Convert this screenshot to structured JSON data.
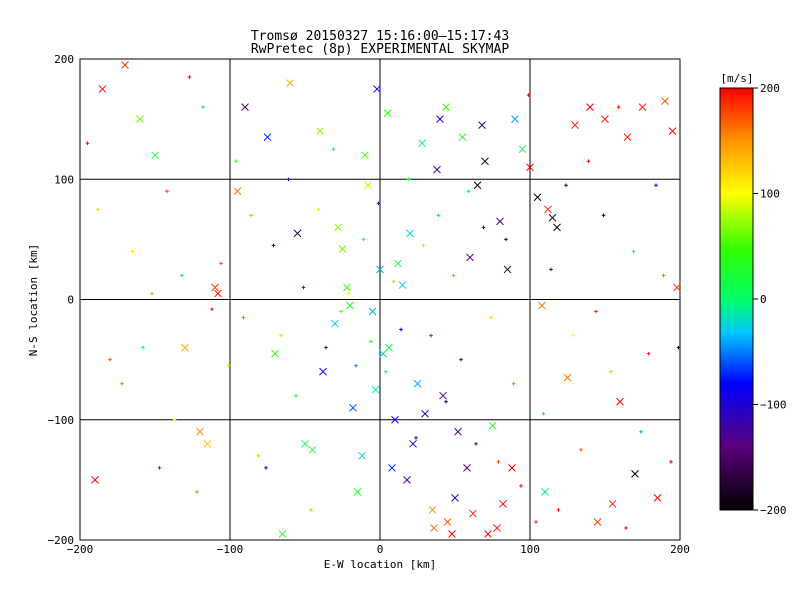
{
  "chart_data": {
    "type": "scatter",
    "title_lines": [
      "Tromsø 20150327 15:16:00–15:17:43",
      "RwPretec (8p) EXPERIMENTAL SKYMAP"
    ],
    "xlabel": "E-W location [km]",
    "ylabel": "N-S location [km]",
    "xlim": [
      -200,
      200
    ],
    "ylim": [
      -200,
      200
    ],
    "xticks": [
      -200,
      -100,
      0,
      100,
      200
    ],
    "yticks": [
      -200,
      -100,
      0,
      100,
      200
    ],
    "xtick_labels": [
      "−200",
      "−100",
      "0",
      "100",
      "200"
    ],
    "ytick_labels": [
      "−200",
      "−100",
      "0",
      "100",
      "200"
    ],
    "grid": true,
    "marker_styles": [
      "x (cross)",
      "+ (small plus)"
    ],
    "colorbar": {
      "label": "[m/s]",
      "range": [
        -200,
        200
      ],
      "ticks": [
        -200,
        -100,
        0,
        100,
        200
      ],
      "tick_labels": [
        "−200",
        "−100",
        "0",
        "100",
        "200"
      ],
      "colormap": "rainbow (black → purple → blue → cyan → green → yellow → orange → red)",
      "placement": "right"
    },
    "series": [
      {
        "marker": "x",
        "points": [
          [
            -190,
            -150,
            200
          ],
          [
            -185,
            175,
            200
          ],
          [
            -170,
            195,
            180
          ],
          [
            -160,
            150,
            60
          ],
          [
            -150,
            120,
            20
          ],
          [
            -130,
            -40,
            140
          ],
          [
            -120,
            -110,
            150
          ],
          [
            -115,
            -120,
            130
          ],
          [
            -110,
            10,
            180
          ],
          [
            -108,
            5,
            190
          ],
          [
            -95,
            90,
            160
          ],
          [
            -90,
            160,
            -150
          ],
          [
            -75,
            135,
            -70
          ],
          [
            -70,
            -45,
            40
          ],
          [
            -65,
            -195,
            30
          ],
          [
            -60,
            180,
            140
          ],
          [
            -55,
            55,
            -170
          ],
          [
            -50,
            -120,
            20
          ],
          [
            -45,
            -125,
            10
          ],
          [
            -40,
            140,
            70
          ],
          [
            -38,
            -60,
            -90
          ],
          [
            -30,
            -20,
            -30
          ],
          [
            -28,
            60,
            70
          ],
          [
            -25,
            42,
            60
          ],
          [
            -22,
            10,
            40
          ],
          [
            -20,
            -5,
            30
          ],
          [
            -18,
            -90,
            -60
          ],
          [
            -15,
            -160,
            30
          ],
          [
            -12,
            -130,
            -20
          ],
          [
            -10,
            120,
            50
          ],
          [
            -8,
            95,
            80
          ],
          [
            -5,
            -10,
            -40
          ],
          [
            -3,
            -75,
            -10
          ],
          [
            -2,
            175,
            -90
          ],
          [
            0,
            25,
            -40
          ],
          [
            2,
            -45,
            -20
          ],
          [
            5,
            155,
            40
          ],
          [
            6,
            -40,
            10
          ],
          [
            8,
            -140,
            -70
          ],
          [
            10,
            -100,
            -80
          ],
          [
            12,
            30,
            10
          ],
          [
            15,
            12,
            -30
          ],
          [
            18,
            -150,
            -120
          ],
          [
            20,
            55,
            -20
          ],
          [
            22,
            -120,
            -100
          ],
          [
            25,
            -70,
            -40
          ],
          [
            28,
            130,
            -10
          ],
          [
            30,
            -95,
            -110
          ],
          [
            35,
            -175,
            150
          ],
          [
            36,
            -190,
            160
          ],
          [
            38,
            108,
            -120
          ],
          [
            40,
            150,
            -100
          ],
          [
            42,
            -80,
            -130
          ],
          [
            44,
            160,
            50
          ],
          [
            45,
            -185,
            170
          ],
          [
            48,
            -195,
            200
          ],
          [
            50,
            -165,
            -110
          ],
          [
            52,
            -110,
            -120
          ],
          [
            55,
            135,
            40
          ],
          [
            58,
            -140,
            -140
          ],
          [
            60,
            35,
            -130
          ],
          [
            62,
            -178,
            190
          ],
          [
            65,
            95,
            -200
          ],
          [
            68,
            145,
            -160
          ],
          [
            70,
            115,
            -180
          ],
          [
            72,
            -195,
            200
          ],
          [
            75,
            -105,
            30
          ],
          [
            78,
            -190,
            190
          ],
          [
            80,
            65,
            -150
          ],
          [
            82,
            -170,
            200
          ],
          [
            85,
            25,
            -170
          ],
          [
            88,
            -140,
            200
          ],
          [
            90,
            150,
            -40
          ],
          [
            95,
            125,
            10
          ],
          [
            100,
            110,
            200
          ],
          [
            105,
            85,
            -200
          ],
          [
            108,
            -5,
            160
          ],
          [
            110,
            -160,
            -10
          ],
          [
            112,
            75,
            190
          ],
          [
            115,
            68,
            -180
          ],
          [
            118,
            60,
            -190
          ],
          [
            125,
            -65,
            160
          ],
          [
            130,
            145,
            190
          ],
          [
            140,
            160,
            200
          ],
          [
            145,
            -185,
            180
          ],
          [
            150,
            150,
            190
          ],
          [
            155,
            -170,
            190
          ],
          [
            160,
            -85,
            200
          ],
          [
            165,
            135,
            190
          ],
          [
            170,
            -145,
            -190
          ],
          [
            175,
            160,
            190
          ],
          [
            185,
            -165,
            200
          ],
          [
            190,
            165,
            170
          ],
          [
            195,
            140,
            200
          ],
          [
            198,
            10,
            180
          ]
        ]
      },
      {
        "marker": "+",
        "points": [
          [
            -195,
            130,
            200
          ],
          [
            -188,
            75,
            120
          ],
          [
            -180,
            -50,
            170
          ],
          [
            -172,
            -70,
            160
          ],
          [
            -165,
            40,
            110
          ],
          [
            -158,
            -40,
            20
          ],
          [
            -152,
            5,
            150
          ],
          [
            -147,
            -140,
            200
          ],
          [
            -142,
            90,
            180
          ],
          [
            -137,
            -100,
            100
          ],
          [
            -132,
            20,
            -10
          ],
          [
            -127,
            185,
            200
          ],
          [
            -122,
            -160,
            160
          ],
          [
            -118,
            160,
            -20
          ],
          [
            -112,
            -8,
            200
          ],
          [
            -106,
            30,
            170
          ],
          [
            -101,
            -55,
            80
          ],
          [
            -96,
            115,
            40
          ],
          [
            -91,
            -15,
            160
          ],
          [
            -86,
            70,
            60
          ],
          [
            -81,
            -130,
            130
          ],
          [
            -76,
            -140,
            -80
          ],
          [
            -71,
            45,
            -160
          ],
          [
            -66,
            -30,
            80
          ],
          [
            -61,
            100,
            -110
          ],
          [
            -56,
            -80,
            20
          ],
          [
            -51,
            10,
            -70
          ],
          [
            -46,
            -175,
            70
          ],
          [
            -41,
            75,
            90
          ],
          [
            -36,
            -40,
            -150
          ],
          [
            -31,
            125,
            20
          ],
          [
            -26,
            -10,
            60
          ],
          [
            -21,
            5,
            100
          ],
          [
            -16,
            -55,
            -50
          ],
          [
            -11,
            50,
            10
          ],
          [
            -6,
            -35,
            30
          ],
          [
            -1,
            80,
            -120
          ],
          [
            4,
            -60,
            0
          ],
          [
            9,
            15,
            70
          ],
          [
            14,
            -25,
            -90
          ],
          [
            19,
            100,
            20
          ],
          [
            24,
            -115,
            -150
          ],
          [
            29,
            45,
            80
          ],
          [
            34,
            -30,
            -60
          ],
          [
            39,
            70,
            -30
          ],
          [
            44,
            -85,
            -170
          ],
          [
            49,
            20,
            40
          ],
          [
            54,
            -50,
            -130
          ],
          [
            59,
            90,
            0
          ],
          [
            64,
            -120,
            -140
          ],
          [
            69,
            60,
            -90
          ],
          [
            74,
            -15,
            120
          ],
          [
            79,
            -135,
            180
          ],
          [
            84,
            50,
            -160
          ],
          [
            89,
            -70,
            160
          ],
          [
            94,
            -155,
            200
          ],
          [
            99,
            170,
            200
          ],
          [
            104,
            -185,
            190
          ],
          [
            109,
            -95,
            -10
          ],
          [
            114,
            25,
            -120
          ],
          [
            119,
            -175,
            200
          ],
          [
            124,
            95,
            -160
          ],
          [
            129,
            -30,
            100
          ],
          [
            134,
            -125,
            170
          ],
          [
            139,
            115,
            200
          ],
          [
            144,
            -10,
            190
          ],
          [
            149,
            70,
            -200
          ],
          [
            154,
            -60,
            130
          ],
          [
            159,
            160,
            190
          ],
          [
            164,
            -190,
            200
          ],
          [
            169,
            40,
            20
          ],
          [
            174,
            -110,
            -40
          ],
          [
            179,
            -45,
            190
          ],
          [
            184,
            95,
            -100
          ],
          [
            189,
            20,
            160
          ],
          [
            194,
            -135,
            200
          ],
          [
            199,
            -40,
            -200
          ]
        ]
      }
    ]
  }
}
